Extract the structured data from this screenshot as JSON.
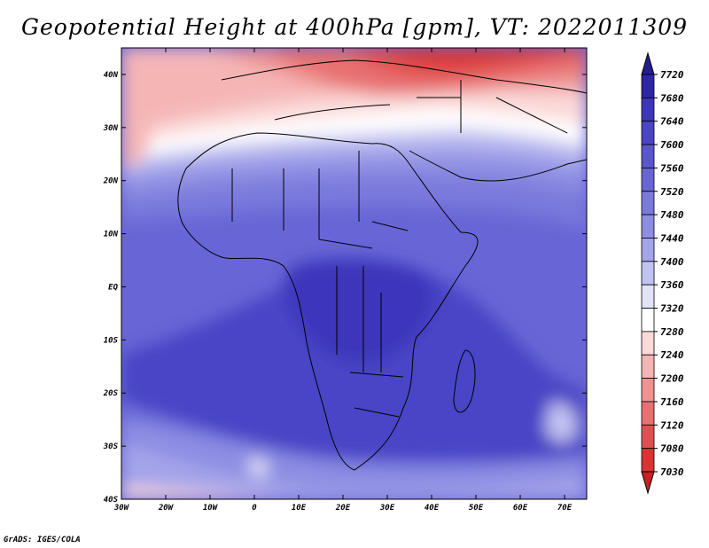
{
  "title": "Geopotential Height at 400hPa [gpm], VT: 2022011309",
  "credit": "GrADS: IGES/COLA",
  "map": {
    "lon_range": [
      -30,
      75
    ],
    "lat_range": [
      -40,
      45
    ],
    "lon_ticks": [
      "30W",
      "20W",
      "10W",
      "0",
      "10E",
      "20E",
      "30E",
      "40E",
      "50E",
      "60E",
      "70E"
    ],
    "lat_ticks": [
      "40N",
      "30N",
      "20N",
      "10N",
      "EQ",
      "10S",
      "20S",
      "30S",
      "40S"
    ]
  },
  "colorbar": {
    "labels": [
      "7720",
      "7680",
      "7640",
      "7600",
      "7560",
      "7520",
      "7480",
      "7440",
      "7400",
      "7360",
      "7320",
      "7280",
      "7240",
      "7200",
      "7160",
      "7120",
      "7080",
      "7030"
    ],
    "colors": [
      "#241c8c",
      "#2e26a6",
      "#3d36bb",
      "#4a44c6",
      "#5a56cf",
      "#6866d6",
      "#7a79dc",
      "#8d8de3",
      "#a4a4ea",
      "#c2c2f1",
      "#e2e2f8",
      "#ffffff",
      "#fbd9d9",
      "#f5b5b5",
      "#ee9292",
      "#e87070",
      "#e15050",
      "#d83434",
      "#c82222"
    ]
  }
}
